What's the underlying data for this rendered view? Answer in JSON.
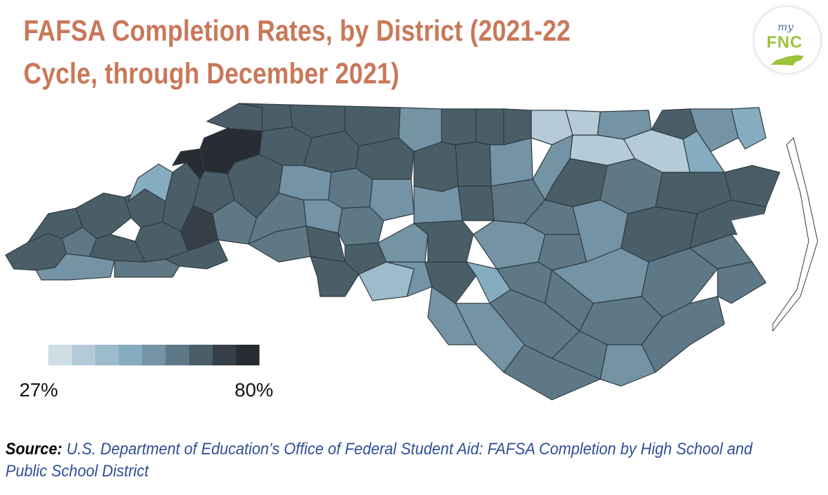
{
  "title": "FAFSA Completion Rates, by District (2021-22 Cycle, through December 2021)",
  "logo": {
    "small_text": "my",
    "big_text": "FNC"
  },
  "legend": {
    "min_label": "27%",
    "max_label": "80%",
    "scale_colors": [
      "#cfdde5",
      "#b5cbd7",
      "#9cbccc",
      "#86acc0",
      "#7494a5",
      "#5e7985",
      "#4a5e68",
      "#363f48",
      "#272d33"
    ]
  },
  "source": {
    "label": "Source:",
    "text": "U.S. Department of Education’s Office of Federal Student Aid: FAFSA Completion by High School and Public School District"
  },
  "colors": {
    "title": "#c9785a",
    "source_text": "#2f4f96",
    "county_border": "#2e3a42",
    "coast_water": "#ffffff"
  }
}
